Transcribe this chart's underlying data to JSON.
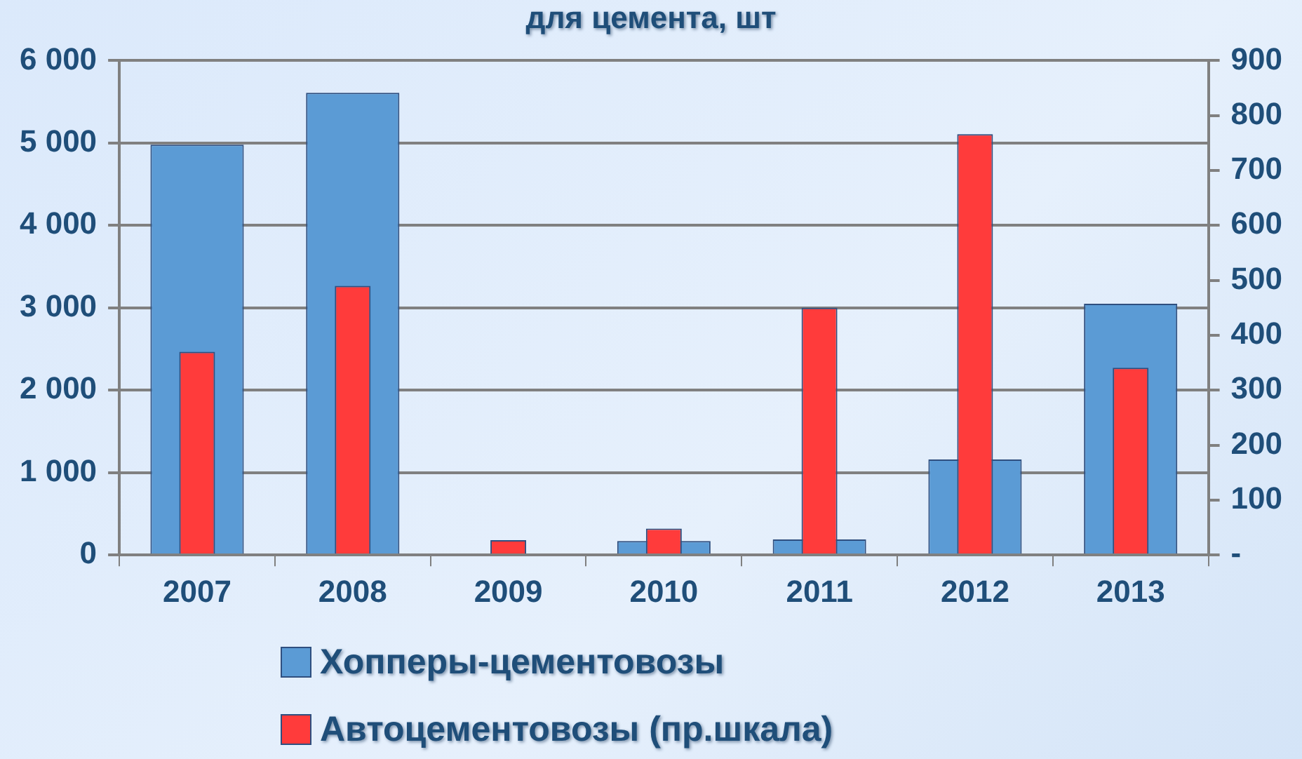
{
  "chart_data": {
    "type": "bar",
    "title": "для цемента, шт",
    "categories": [
      "2007",
      "2008",
      "2009",
      "2010",
      "2011",
      "2012",
      "2013"
    ],
    "series": [
      {
        "name": "Хопперы-цементовозы",
        "color": "#5b9bd5",
        "values": [
          4980,
          5610,
          0,
          170,
          190,
          1160,
          3050
        ]
      },
      {
        "name": "Автоцементовозы (пр.шкала)",
        "color": "#ff3b3b",
        "axis": "y2",
        "values": [
          370,
          490,
          27,
          48,
          450,
          766,
          341
        ]
      }
    ],
    "ylim": [
      0,
      6000
    ],
    "yticks": [
      0,
      {
        "value": 1000,
        "label": "1 000"
      },
      {
        "value": 2000,
        "label": "2 000"
      },
      {
        "value": 3000,
        "label": "3 000"
      },
      {
        "value": 4000,
        "label": "4 000"
      },
      {
        "value": 5000,
        "label": "5 000"
      },
      {
        "value": 6000,
        "label": "6 000"
      }
    ],
    "y2lim": [
      0,
      900
    ],
    "y2ticks": [
      {
        "value": 0,
        "label": "-"
      },
      100,
      200,
      300,
      400,
      500,
      600,
      700,
      800,
      900
    ],
    "grid": "y",
    "legend": "bottom"
  }
}
